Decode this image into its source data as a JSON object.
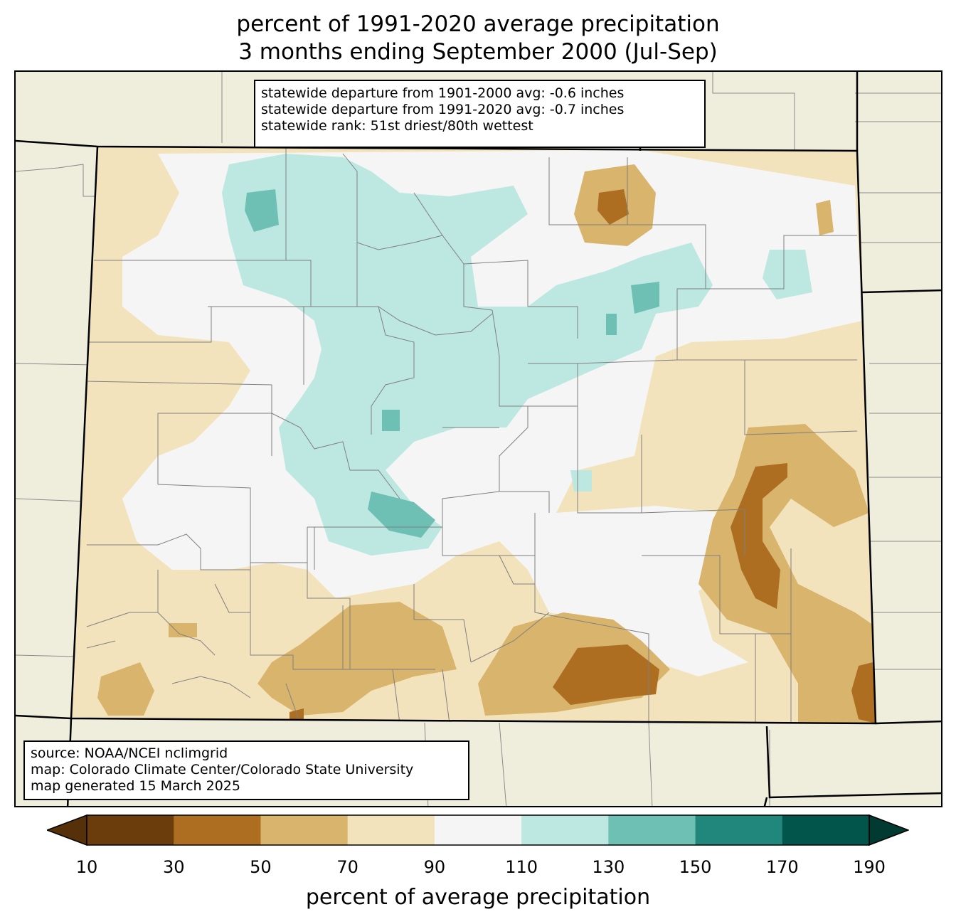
{
  "title": {
    "line1": "percent of 1991-2020 average precipitation",
    "line2": "3 months ending September 2000 (Jul-Sep)"
  },
  "stats": {
    "line1": "statewide departure from 1901-2000 avg: -0.6 inches",
    "line2": "statewide departure from 1991-2020 avg: -0.7 inches",
    "line3": "statewide rank: 51st driest/80th wettest"
  },
  "source": {
    "line1": "source: NOAA/NCEI nclimgrid",
    "line2": "map: Colorado Climate Center/Colorado State University",
    "line3": "map generated 15 March 2025"
  },
  "colorbar": {
    "label": "percent of average precipitation",
    "ticks": [
      "10",
      "30",
      "50",
      "70",
      "90",
      "110",
      "130",
      "150",
      "170",
      "190"
    ],
    "colors": [
      "#6b3d0c",
      "#ad6e22",
      "#d8b46c",
      "#f3e3bc",
      "#f4f5f4",
      "#bde7e1",
      "#6fc0b4",
      "#21877c",
      "#01554a"
    ],
    "under_color": "#553009",
    "over_color": "#003a30"
  },
  "colors": {
    "background_land": "#efeedc",
    "state_border": "#000000",
    "county_border": "#808080"
  }
}
